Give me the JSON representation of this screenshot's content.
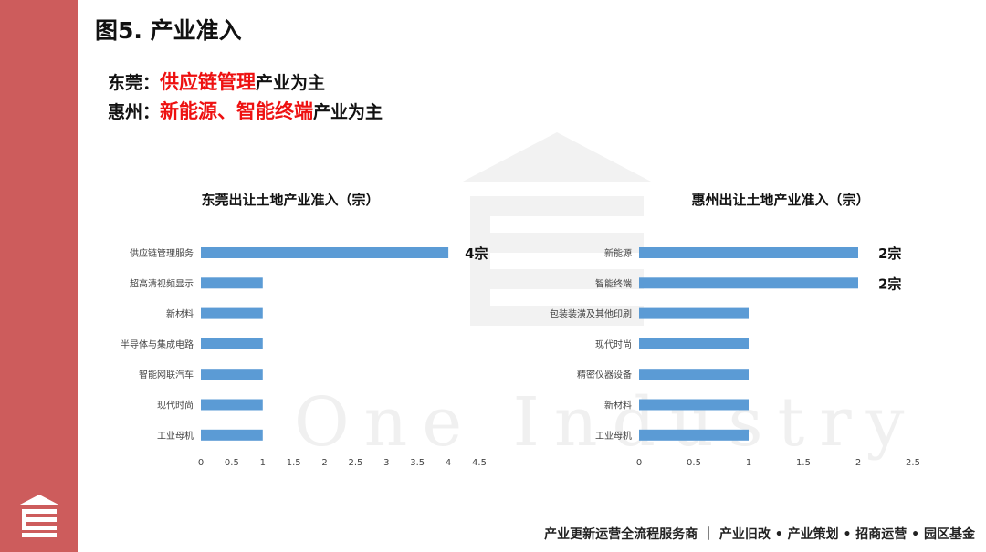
{
  "page": {
    "title": "图5. 产业准入",
    "sub1": {
      "prefix": "东莞：",
      "highlight": "供应链管理",
      "suffix": "产业为主"
    },
    "sub2": {
      "prefix": "惠州：",
      "highlight": "新能源、智能终端",
      "suffix": "产业为主"
    },
    "watermark": "One Industry",
    "footer": "产业更新运营全流程服务商 ｜ 产业旧改 • 产业策划 • 招商运营 • 园区基金",
    "bar_color": "#5b9bd5",
    "accent_color": "#cd5c5c",
    "highlight_color": "#ee1111"
  },
  "chart_data": [
    {
      "type": "bar",
      "orientation": "horizontal",
      "title": "东莞出让土地产业准入（宗）",
      "categories": [
        "供应链管理服务",
        "超高清视频显示",
        "新材料",
        "半导体与集成电路",
        "智能网联汽车",
        "现代时尚",
        "工业母机"
      ],
      "values": [
        4,
        1,
        1,
        1,
        1,
        1,
        1
      ],
      "data_labels": [
        "4宗",
        "",
        "",
        "",
        "",
        "",
        ""
      ],
      "xlim": [
        0,
        4.5
      ],
      "xticks": [
        "0",
        "0.5",
        "1",
        "1.5",
        "2",
        "2.5",
        "3",
        "3.5",
        "4",
        "4.5"
      ],
      "grid": false
    },
    {
      "type": "bar",
      "orientation": "horizontal",
      "title": "惠州出让土地产业准入（宗）",
      "categories": [
        "新能源",
        "智能终端",
        "包装装潢及其他印刷",
        "现代时尚",
        "精密仪器设备",
        "新材料",
        "工业母机"
      ],
      "values": [
        2,
        2,
        1,
        1,
        1,
        1,
        1
      ],
      "data_labels": [
        "2宗",
        "2宗",
        "",
        "",
        "",
        "",
        ""
      ],
      "xlim": [
        0,
        2.5
      ],
      "xticks": [
        "0",
        "0.5",
        "1",
        "1.5",
        "2",
        "2.5"
      ],
      "grid": false
    }
  ]
}
